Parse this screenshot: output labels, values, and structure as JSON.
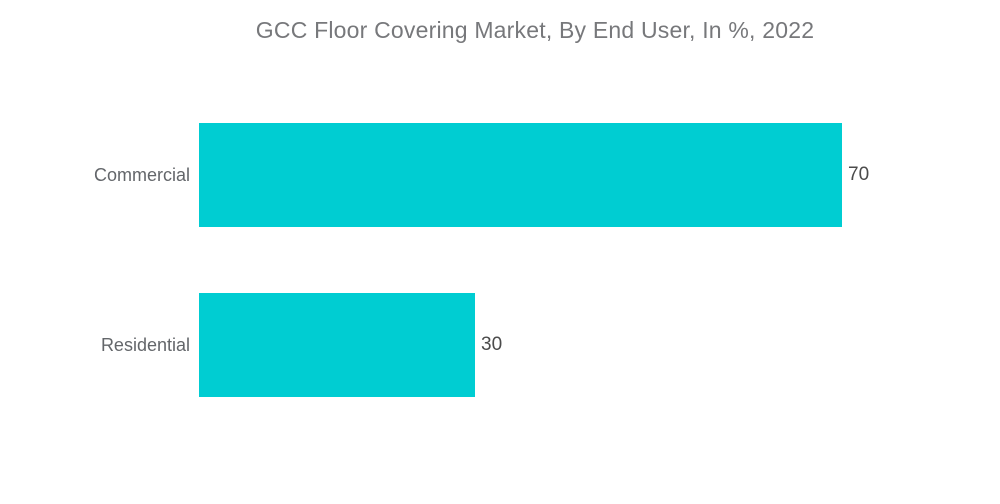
{
  "chart_data": {
    "type": "bar",
    "orientation": "horizontal",
    "title": "GCC Floor Covering Market, By End User, In %, 2022",
    "categories": [
      "Commercial",
      "Residential"
    ],
    "values": [
      70,
      30
    ],
    "value_labels": [
      "70",
      "30"
    ],
    "unit": "%",
    "xlabel": "",
    "ylabel": "",
    "xlim": [
      0,
      100
    ],
    "grid": false,
    "legend": false,
    "colors": {
      "bar": "#00cdd2",
      "title_text": "#77787b",
      "category_text": "#63666a",
      "value_text": "#4b4b4b",
      "background": "#ffffff"
    }
  }
}
